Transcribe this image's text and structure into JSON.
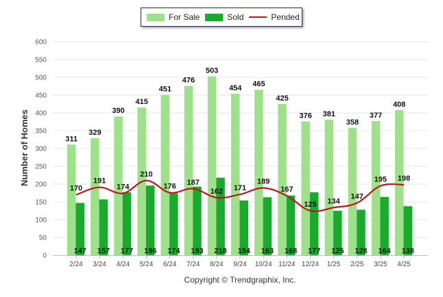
{
  "chart_data": {
    "type": "bar",
    "ylabel": "Number of Homes",
    "ylim": [
      0,
      600
    ],
    "yticks": [
      "0",
      "50",
      "100",
      "150",
      "200",
      "250",
      "300",
      "350",
      "400",
      "450",
      "500",
      "550",
      "600"
    ],
    "grid": true,
    "legend_position": "top-center",
    "categories": [
      "2/24",
      "3/24",
      "4/24",
      "5/24",
      "6/24",
      "7/24",
      "8/24",
      "9/24",
      "10/24",
      "11/24",
      "12/24",
      "1/25",
      "2/25",
      "3/25",
      "4/25"
    ],
    "series": [
      {
        "name": "For Sale",
        "kind": "bar",
        "color": "#9fe08a",
        "values": [
          311,
          329,
          390,
          415,
          451,
          476,
          503,
          454,
          465,
          425,
          376,
          381,
          358,
          377,
          408
        ]
      },
      {
        "name": "Sold",
        "kind": "bar",
        "color": "#1aab2e",
        "values": [
          147,
          157,
          177,
          196,
          174,
          193,
          218,
          154,
          163,
          168,
          177,
          125,
          128,
          164,
          138
        ]
      },
      {
        "name": "Pended",
        "kind": "line",
        "color": "#c0141a",
        "values": [
          170,
          191,
          174,
          210,
          176,
          187,
          162,
          171,
          189,
          167,
          125,
          134,
          147,
          195,
          198
        ]
      }
    ],
    "footer": "Copyright © Trendgraphix, Inc."
  }
}
